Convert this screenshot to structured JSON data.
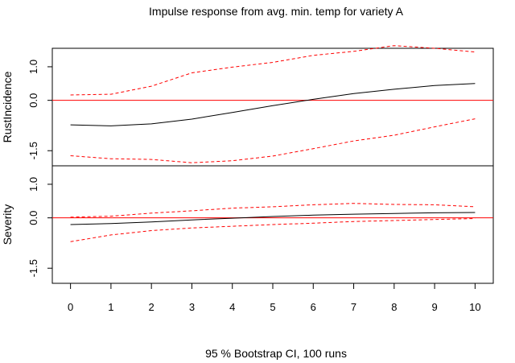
{
  "title": "Impulse response from avg. min. temp for variety A",
  "subtitle": "95 % Bootstrap CI,  100 runs",
  "colors": {
    "response": "#000000",
    "ci": "#ff0000",
    "zero": "#ff0000",
    "axis": "#000000"
  },
  "chart_data": [
    {
      "type": "line",
      "ylabel": "RustIncidence",
      "ylim": [
        -1.95,
        1.55
      ],
      "yticks": [
        1.0,
        0.0,
        -1.5
      ],
      "ytick_labels": [
        "1.0",
        "0.0",
        "-1.5"
      ],
      "grid": false,
      "zero_line": 0,
      "x": [
        0,
        1,
        2,
        3,
        4,
        5,
        6,
        7,
        8,
        9,
        10
      ],
      "series": [
        {
          "role": "response",
          "values": [
            -0.73,
            -0.76,
            -0.7,
            -0.56,
            -0.36,
            -0.16,
            0.03,
            0.2,
            0.33,
            0.44,
            0.5
          ]
        },
        {
          "role": "upper",
          "values": [
            0.16,
            0.18,
            0.42,
            0.82,
            0.99,
            1.13,
            1.34,
            1.46,
            1.63,
            1.55,
            1.44
          ]
        },
        {
          "role": "lower",
          "values": [
            -1.65,
            -1.74,
            -1.76,
            -1.86,
            -1.8,
            -1.66,
            -1.44,
            -1.21,
            -1.04,
            -0.79,
            -0.55
          ]
        }
      ]
    },
    {
      "type": "line",
      "ylabel": "Severity",
      "ylim": [
        -1.95,
        1.55
      ],
      "yticks": [
        1.0,
        0.0,
        -1.5
      ],
      "ytick_labels": [
        "1.0",
        "0.0",
        "-1.5"
      ],
      "grid": false,
      "zero_line": 0,
      "x": [
        0,
        1,
        2,
        3,
        4,
        5,
        6,
        7,
        8,
        9,
        10
      ],
      "xticks": [
        0,
        1,
        2,
        3,
        4,
        5,
        6,
        7,
        8,
        9,
        10
      ],
      "xtick_labels": [
        "0",
        "1",
        "2",
        "3",
        "4",
        "5",
        "6",
        "7",
        "8",
        "9",
        "10"
      ],
      "series": [
        {
          "role": "response",
          "values": [
            -0.2,
            -0.17,
            -0.12,
            -0.06,
            -0.01,
            0.04,
            0.08,
            0.11,
            0.13,
            0.15,
            0.16
          ]
        },
        {
          "role": "upper",
          "values": [
            0.02,
            0.05,
            0.14,
            0.21,
            0.29,
            0.33,
            0.39,
            0.43,
            0.4,
            0.39,
            0.33
          ]
        },
        {
          "role": "lower",
          "values": [
            -0.71,
            -0.51,
            -0.38,
            -0.3,
            -0.25,
            -0.2,
            -0.16,
            -0.11,
            -0.08,
            -0.05,
            -0.02
          ]
        }
      ]
    }
  ]
}
